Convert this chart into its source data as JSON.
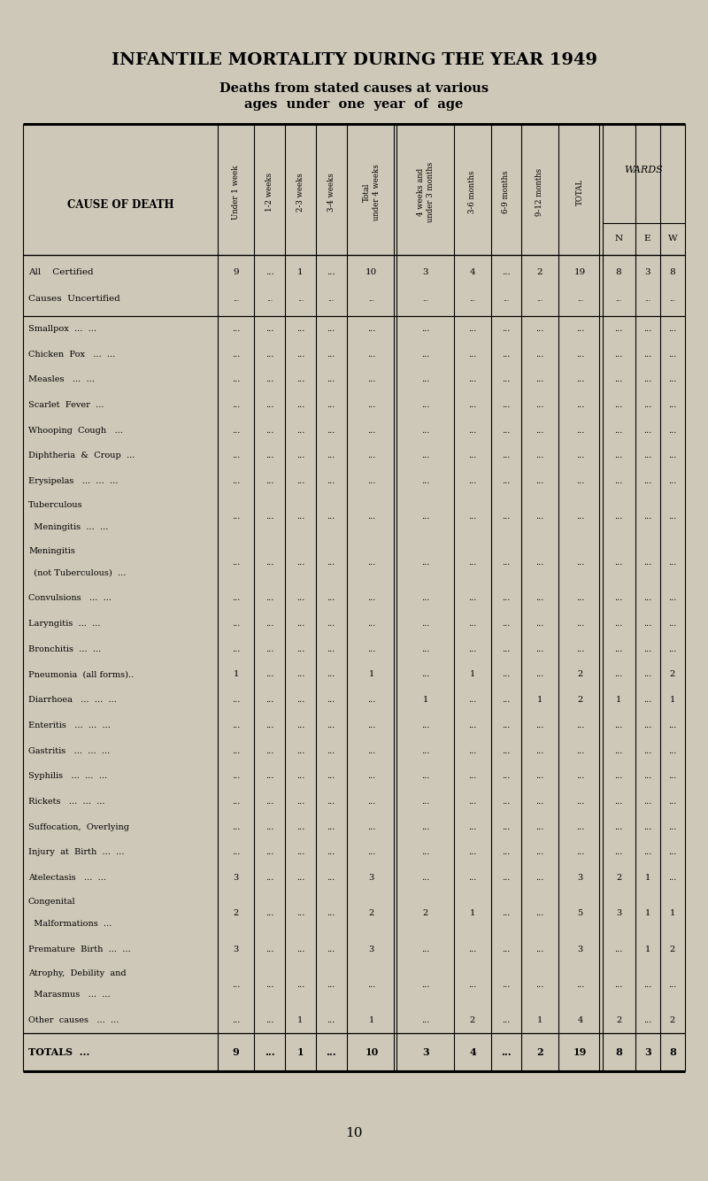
{
  "title": "INFANTILE MORTALITY DURING THE YEAR 1949",
  "subtitle1": "Deaths from stated causes at various",
  "subtitle2": "ages  under  one  year  of  age",
  "bg_color": "#cec8b8",
  "col_headers": [
    "Under 1 week",
    "1-2 weeks",
    "2-3 weeks",
    "3-4 weeks",
    "Total\nunder 4 weeks",
    "4 weeks and\nunder 3 months",
    "3-6 months",
    "6-9 months",
    "9-12 months",
    "TOTAL",
    "N",
    "E",
    "W"
  ],
  "cause_col_header": "CAUSE OF DEATH",
  "wards_header": "WARDS",
  "rows": [
    {
      "cause": "All    Certified",
      "cause2": "Causes  Uncertified",
      "data": [
        "9",
        "...",
        "1",
        "...",
        "10",
        "3",
        "4",
        "...",
        "2",
        "19",
        "8",
        "3",
        "8"
      ],
      "data2": [
        "...",
        "...",
        "...",
        "...",
        "...",
        "...",
        "...",
        "...",
        "...",
        "...",
        "...",
        "...",
        "..."
      ],
      "separator_after": true,
      "is_allcauses": true
    },
    {
      "cause": "Smallpox  ...  ...",
      "data": [
        "...",
        "...",
        "...",
        "...",
        "...",
        "...",
        "...",
        "...",
        "...",
        "...",
        "...",
        "...",
        "..."
      ]
    },
    {
      "cause": "Chicken  Pox   ...  ...",
      "data": [
        "...",
        "...",
        "...",
        "...",
        "...",
        "...",
        "...",
        "...",
        "...",
        "...",
        "...",
        "...",
        "..."
      ]
    },
    {
      "cause": "Measles   ...  ...",
      "data": [
        "...",
        "...",
        "...",
        "...",
        "...",
        "...",
        "...",
        "...",
        "...",
        "...",
        "...",
        "...",
        "..."
      ]
    },
    {
      "cause": "Scarlet  Fever  ...",
      "data": [
        "...",
        "...",
        "...",
        "...",
        "...",
        "...",
        "...",
        "...",
        "...",
        "...",
        "...",
        "...",
        "..."
      ]
    },
    {
      "cause": "Whooping  Cough   ...",
      "data": [
        "...",
        "...",
        "...",
        "...",
        "...",
        "...",
        "...",
        "...",
        "...",
        "...",
        "...",
        "...",
        "..."
      ]
    },
    {
      "cause": "Diphtheria  &  Croup  ...",
      "data": [
        "...",
        "...",
        "...",
        "...",
        "...",
        "...",
        "...",
        "...",
        "...",
        "...",
        "...",
        "...",
        "..."
      ]
    },
    {
      "cause": "Erysipelas   ...  ...  ...",
      "data": [
        "...",
        "...",
        "...",
        "...",
        "...",
        "...",
        "...",
        "...",
        "...",
        "...",
        "...",
        "...",
        "..."
      ]
    },
    {
      "cause": "Tuberculous",
      "cause2": "  Meningitis  ...  ...",
      "data": [
        "...",
        "...",
        "...",
        "...",
        "...",
        "...",
        "...",
        "...",
        "...",
        "...",
        "...",
        "...",
        "..."
      ],
      "two_line": true
    },
    {
      "cause": "Meningitis",
      "cause2": "  (not Tuberculous)  ...",
      "data": [
        "...",
        "...",
        "...",
        "...",
        "...",
        "...",
        "...",
        "...",
        "...",
        "...",
        "...",
        "...",
        "..."
      ],
      "two_line": true
    },
    {
      "cause": "Convulsions   ...  ...",
      "data": [
        "...",
        "...",
        "...",
        "...",
        "...",
        "...",
        "...",
        "...",
        "...",
        "...",
        "...",
        "...",
        "..."
      ]
    },
    {
      "cause": "Laryngitis  ...  ...",
      "data": [
        "...",
        "...",
        "...",
        "...",
        "...",
        "...",
        "...",
        "...",
        "...",
        "...",
        "...",
        "...",
        "..."
      ]
    },
    {
      "cause": "Bronchitis  ...  ...",
      "data": [
        "...",
        "...",
        "...",
        "...",
        "...",
        "...",
        "...",
        "...",
        "...",
        "...",
        "...",
        "...",
        "..."
      ]
    },
    {
      "cause": "Pneumonia  (all forms)..",
      "data": [
        "1",
        "...",
        "...",
        "...",
        "1",
        "...",
        "1",
        "...",
        "...",
        "2",
        "...",
        "...",
        "2"
      ]
    },
    {
      "cause": "Diarrhoea   ...  ...  ...",
      "data": [
        "...",
        "...",
        "...",
        "...",
        "...",
        "1",
        "...",
        "...",
        "1",
        "2",
        "1",
        "...",
        "1"
      ]
    },
    {
      "cause": "Enteritis   ...  ...  ...",
      "data": [
        "...",
        "...",
        "...",
        "...",
        "...",
        "...",
        "...",
        "...",
        "...",
        "...",
        "...",
        "...",
        "..."
      ]
    },
    {
      "cause": "Gastritis   ...  ...  ...",
      "data": [
        "...",
        "...",
        "...",
        "...",
        "...",
        "...",
        "...",
        "...",
        "...",
        "...",
        "...",
        "...",
        "..."
      ]
    },
    {
      "cause": "Syphilis   ...  ...  ...",
      "data": [
        "...",
        "...",
        "...",
        "...",
        "...",
        "...",
        "...",
        "...",
        "...",
        "...",
        "...",
        "...",
        "..."
      ]
    },
    {
      "cause": "Rickets   ...  ...  ...",
      "data": [
        "...",
        "...",
        "...",
        "...",
        "...",
        "...",
        "...",
        "...",
        "...",
        "...",
        "...",
        "...",
        "..."
      ]
    },
    {
      "cause": "Suffocation,  Overlying",
      "data": [
        "...",
        "...",
        "...",
        "...",
        "...",
        "...",
        "...",
        "...",
        "...",
        "...",
        "...",
        "...",
        "..."
      ]
    },
    {
      "cause": "Injury  at  Birth  ...  ...",
      "data": [
        "...",
        "...",
        "...",
        "...",
        "...",
        "...",
        "...",
        "...",
        "...",
        "...",
        "...",
        "...",
        "..."
      ]
    },
    {
      "cause": "Atelectasis   ...  ...",
      "data": [
        "3",
        "...",
        "...",
        "...",
        "3",
        "...",
        "...",
        "...",
        "...",
        "3",
        "2",
        "1",
        "..."
      ]
    },
    {
      "cause": "Congenital",
      "cause2": "  Malformations  ...",
      "data": [
        "2",
        "...",
        "...",
        "...",
        "2",
        "2",
        "1",
        "...",
        "...",
        "5",
        "3",
        "1",
        "1"
      ],
      "two_line": true
    },
    {
      "cause": "Premature  Birth  ...  ...",
      "data": [
        "3",
        "...",
        "...",
        "...",
        "3",
        "...",
        "...",
        "...",
        "...",
        "3",
        "...",
        "1",
        "2"
      ]
    },
    {
      "cause": "Atrophy,  Debility  and",
      "cause2": "  Marasmus   ...  ...",
      "data": [
        "...",
        "...",
        "...",
        "...",
        "...",
        "...",
        "...",
        "...",
        "...",
        "...",
        "...",
        "...",
        "..."
      ],
      "two_line": true
    },
    {
      "cause": "Other  causes   ...  ...",
      "data": [
        "...",
        "...",
        "1",
        "...",
        "1",
        "...",
        "2",
        "...",
        "1",
        "4",
        "2",
        "...",
        "2"
      ]
    },
    {
      "cause": "TOTALS  ...",
      "data": [
        "9",
        "...",
        "1",
        "...",
        "10",
        "3",
        "4",
        "...",
        "2",
        "19",
        "8",
        "3",
        "8"
      ],
      "is_total": true
    }
  ],
  "page_num": "10"
}
